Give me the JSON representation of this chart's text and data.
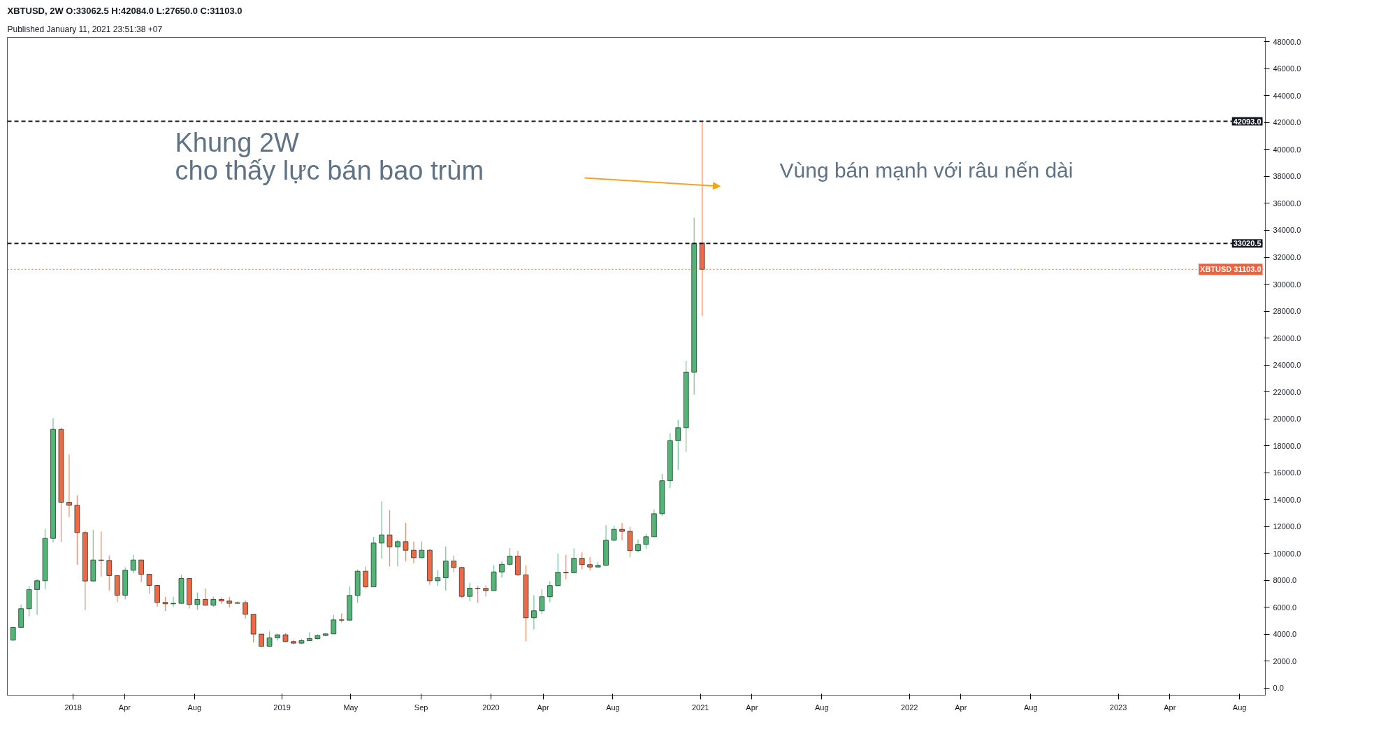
{
  "chart_data": {
    "type": "candlestick",
    "title": "XBTUSD, 2W O:33062.5 H:42084.0 L:27650.0 C:31103.0",
    "subtitle": "Published January 11, 2021 23:51:38 +07",
    "x": [
      "2017-09-18",
      "2017-10-02",
      "2017-10-16",
      "2017-10-30",
      "2017-11-13",
      "2017-11-27",
      "2017-12-11",
      "2017-12-25",
      "2018-01-08",
      "2018-01-22",
      "2018-02-05",
      "2018-02-19",
      "2018-03-05",
      "2018-03-19",
      "2018-04-02",
      "2018-04-16",
      "2018-04-30",
      "2018-05-14",
      "2018-05-28",
      "2018-06-11",
      "2018-06-25",
      "2018-07-09",
      "2018-07-23",
      "2018-08-06",
      "2018-08-20",
      "2018-09-03",
      "2018-09-17",
      "2018-10-01",
      "2018-10-15",
      "2018-10-29",
      "2018-11-12",
      "2018-11-26",
      "2018-12-10",
      "2018-12-24",
      "2019-01-07",
      "2019-01-21",
      "2019-02-04",
      "2019-02-18",
      "2019-03-04",
      "2019-03-18",
      "2019-04-01",
      "2019-04-15",
      "2019-04-29",
      "2019-05-13",
      "2019-05-27",
      "2019-06-10",
      "2019-06-24",
      "2019-07-08",
      "2019-07-22",
      "2019-08-05",
      "2019-08-19",
      "2019-09-02",
      "2019-09-16",
      "2019-09-30",
      "2019-10-14",
      "2019-10-28",
      "2019-11-11",
      "2019-11-25",
      "2019-12-09",
      "2019-12-23",
      "2020-01-06",
      "2020-01-20",
      "2020-02-03",
      "2020-02-17",
      "2020-03-02",
      "2020-03-16",
      "2020-03-30",
      "2020-04-13",
      "2020-04-27",
      "2020-05-11",
      "2020-05-25",
      "2020-06-08",
      "2020-06-22",
      "2020-07-06",
      "2020-07-20",
      "2020-08-03",
      "2020-08-17",
      "2020-08-31",
      "2020-09-14",
      "2020-09-28",
      "2020-10-12",
      "2020-10-26",
      "2020-11-09",
      "2020-11-23",
      "2020-12-07",
      "2020-12-21",
      "2021-01-04"
    ],
    "ohlc": [
      [
        3559,
        4560,
        3525,
        4510
      ],
      [
        4510,
        6188,
        4475,
        5894
      ],
      [
        5894,
        7555,
        5323,
        7313
      ],
      [
        7313,
        8110,
        5427,
        7970
      ],
      [
        7970,
        11828,
        7330,
        11119
      ],
      [
        11119,
        20046,
        10825,
        19215
      ],
      [
        19215,
        19354,
        10859,
        13800
      ],
      [
        13800,
        17364,
        12693,
        13575
      ],
      [
        13575,
        14319,
        9164,
        11551
      ],
      [
        11551,
        11690,
        5808,
        7953
      ],
      [
        7953,
        11741,
        7953,
        9510
      ],
      [
        9510,
        11638,
        8281,
        9475
      ],
      [
        9475,
        9839,
        7244,
        8351
      ],
      [
        8351,
        8351,
        6378,
        6898
      ],
      [
        6898,
        8973,
        6586,
        8749
      ],
      [
        8749,
        9890,
        8541,
        9510
      ],
      [
        9510,
        9510,
        7884,
        8455
      ],
      [
        8455,
        8455,
        7019,
        7624
      ],
      [
        7624,
        7624,
        6033,
        6361
      ],
      [
        6361,
        6776,
        5721,
        6257
      ],
      [
        6257,
        6776,
        6033,
        6292
      ],
      [
        6292,
        8420,
        6257,
        8143
      ],
      [
        8143,
        8143,
        5911,
        6205
      ],
      [
        6205,
        7105,
        5807,
        6586
      ],
      [
        6586,
        7382,
        6119,
        6154
      ],
      [
        6154,
        6776,
        6033,
        6586
      ],
      [
        6586,
        6725,
        6257,
        6465
      ],
      [
        6465,
        6776,
        5980,
        6292
      ],
      [
        6292,
        6431,
        6257,
        6344
      ],
      [
        6344,
        6517,
        5168,
        5479
      ],
      [
        5479,
        5479,
        3386,
        4008
      ],
      [
        4008,
        4008,
        3072,
        3107
      ],
      [
        3107,
        4214,
        3107,
        3730
      ],
      [
        3730,
        4041,
        3522,
        3955
      ],
      [
        3955,
        4076,
        3418,
        3453
      ],
      [
        3453,
        3591,
        3263,
        3332
      ],
      [
        3332,
        3643,
        3263,
        3522
      ],
      [
        3522,
        4145,
        3505,
        3678
      ],
      [
        3678,
        3989,
        3609,
        3903
      ],
      [
        3903,
        4076,
        3851,
        4024
      ],
      [
        4024,
        5426,
        4024,
        5062
      ],
      [
        5062,
        5563,
        4871,
        5045
      ],
      [
        5045,
        7553,
        5045,
        6878
      ],
      [
        6878,
        8799,
        6342,
        8677
      ],
      [
        8677,
        9023,
        7414,
        7518
      ],
      [
        7518,
        11221,
        7484,
        10771
      ],
      [
        10771,
        13867,
        9612,
        11376
      ],
      [
        11376,
        13210,
        9041,
        10494
      ],
      [
        10494,
        11030,
        9041,
        10874
      ],
      [
        10874,
        12276,
        9421,
        10235
      ],
      [
        10235,
        10874,
        9266,
        9681
      ],
      [
        9681,
        10874,
        9681,
        10235
      ],
      [
        10235,
        10338,
        7674,
        7968
      ],
      [
        7968,
        8747,
        7605,
        8193
      ],
      [
        8193,
        10511,
        7241,
        9439
      ],
      [
        9439,
        9836,
        8608,
        8954
      ],
      [
        8954,
        9006,
        6688,
        6809
      ],
      [
        6809,
        7813,
        6446,
        7415
      ],
      [
        7415,
        7588,
        6342,
        7400
      ],
      [
        7400,
        7640,
        6809,
        7241
      ],
      [
        7241,
        9127,
        7241,
        8625
      ],
      [
        8625,
        9420,
        8200,
        9190
      ],
      [
        9190,
        10400,
        9100,
        9800
      ],
      [
        9800,
        10200,
        8330,
        8410
      ],
      [
        8410,
        9130,
        3480,
        5220
      ],
      [
        5220,
        6900,
        4350,
        5740
      ],
      [
        5740,
        7350,
        5500,
        6780
      ],
      [
        6780,
        7940,
        6380,
        7610
      ],
      [
        7610,
        10000,
        7550,
        8600
      ],
      [
        8600,
        9900,
        8080,
        8560
      ],
      [
        8560,
        10360,
        8540,
        9640
      ],
      [
        9640,
        10080,
        8810,
        9170
      ],
      [
        9170,
        9720,
        8730,
        8990
      ],
      [
        8990,
        9380,
        8990,
        9120
      ],
      [
        9120,
        12100,
        9070,
        10980
      ],
      [
        10980,
        12050,
        10900,
        11790
      ],
      [
        11790,
        12270,
        10990,
        11640
      ],
      [
        11640,
        11980,
        9740,
        10210
      ],
      [
        10210,
        11030,
        10080,
        10670
      ],
      [
        10670,
        11450,
        10330,
        11240
      ],
      [
        11240,
        13270,
        11240,
        12950
      ],
      [
        12950,
        15900,
        12800,
        15400
      ],
      [
        15400,
        18930,
        14850,
        18380
      ],
      [
        18380,
        19930,
        16200,
        19340
      ],
      [
        19340,
        24300,
        17550,
        23470
      ],
      [
        23470,
        34940,
        21780,
        33020.5
      ],
      [
        33062.5,
        42084,
        27650,
        31103
      ]
    ],
    "colors": [
      "#52b477",
      "#52b477",
      "#52b477",
      "#52b477",
      "#52b477",
      "#52b477",
      "#ec6a47",
      "#ec6a47",
      "#ec6a47",
      "#ec6a47",
      "#52b477",
      "#ec6a47",
      "#ec6a47",
      "#ec6a47",
      "#52b477",
      "#52b477",
      "#ec6a47",
      "#ec6a47",
      "#ec6a47",
      "#ec6a47",
      "#52b477",
      "#52b477",
      "#ec6a47",
      "#52b477",
      "#ec6a47",
      "#52b477",
      "#ec6a47",
      "#ec6a47",
      "#52b477",
      "#ec6a47",
      "#ec6a47",
      "#ec6a47",
      "#52b477",
      "#52b477",
      "#ec6a47",
      "#ec6a47",
      "#52b477",
      "#52b477",
      "#52b477",
      "#52b477",
      "#52b477",
      "#ec6a47",
      "#52b477",
      "#52b477",
      "#ec6a47",
      "#52b477",
      "#52b477",
      "#ec6a47",
      "#52b477",
      "#ec6a47",
      "#ec6a47",
      "#52b477",
      "#ec6a47",
      "#52b477",
      "#52b477",
      "#ec6a47",
      "#ec6a47",
      "#52b477",
      "#ec6a47",
      "#ec6a47",
      "#52b477",
      "#52b477",
      "#52b477",
      "#ec6a47",
      "#ec6a47",
      "#52b477",
      "#52b477",
      "#52b477",
      "#52b477",
      "#ec6a47",
      "#52b477",
      "#ec6a47",
      "#ec6a47",
      "#52b477",
      "#52b477",
      "#52b477",
      "#ec6a47",
      "#ec6a47",
      "#52b477",
      "#52b477",
      "#52b477",
      "#52b477",
      "#52b477",
      "#52b477",
      "#52b477",
      "#52b477",
      "#ec6a47"
    ],
    "xlim": [
      "2017-09-08",
      "2023-09-15"
    ],
    "xticks": [
      {
        "value": "2018-01-01",
        "label": "2018"
      },
      {
        "value": "2018-04-01",
        "label": "Apr"
      },
      {
        "value": "2018-08-01",
        "label": "Aug"
      },
      {
        "value": "2019-01-01",
        "label": "2019"
      },
      {
        "value": "2019-05-01",
        "label": "May"
      },
      {
        "value": "2019-09-01",
        "label": "Sep"
      },
      {
        "value": "2020-01-01",
        "label": "2020"
      },
      {
        "value": "2020-04-01",
        "label": "Apr"
      },
      {
        "value": "2020-08-01",
        "label": "Aug"
      },
      {
        "value": "2021-01-01",
        "label": "2021"
      },
      {
        "value": "2021-04-01",
        "label": "Apr"
      },
      {
        "value": "2021-08-01",
        "label": "Aug"
      },
      {
        "value": "2022-01-01",
        "label": "2022"
      },
      {
        "value": "2022-04-01",
        "label": "Apr"
      },
      {
        "value": "2022-08-01",
        "label": "Aug"
      },
      {
        "value": "2023-01-01",
        "label": "2023"
      },
      {
        "value": "2023-04-01",
        "label": "Apr"
      },
      {
        "value": "2023-08-01",
        "label": "Aug"
      }
    ],
    "ylim": [
      -530,
      48330
    ],
    "yticks": [
      {
        "value": 0,
        "label": "0.0"
      },
      {
        "value": 2000,
        "label": "2000.0"
      },
      {
        "value": 4000,
        "label": "4000.0"
      },
      {
        "value": 6000,
        "label": "6000.0"
      },
      {
        "value": 8000,
        "label": "8000.0"
      },
      {
        "value": 10000,
        "label": "10000.0"
      },
      {
        "value": 12000,
        "label": "12000.0"
      },
      {
        "value": 14000,
        "label": "14000.0"
      },
      {
        "value": 16000,
        "label": "16000.0"
      },
      {
        "value": 18000,
        "label": "18000.0"
      },
      {
        "value": 20000,
        "label": "20000.0"
      },
      {
        "value": 22000,
        "label": "22000.0"
      },
      {
        "value": 24000,
        "label": "24000.0"
      },
      {
        "value": 26000,
        "label": "26000.0"
      },
      {
        "value": 28000,
        "label": "28000.0"
      },
      {
        "value": 30000,
        "label": "30000.0"
      },
      {
        "value": 32000,
        "label": "32000.0"
      },
      {
        "value": 34000,
        "label": "34000.0"
      },
      {
        "value": 36000,
        "label": "36000.0"
      },
      {
        "value": 38000,
        "label": "38000.0"
      },
      {
        "value": 40000,
        "label": "40000.0"
      },
      {
        "value": 42000,
        "label": "42000.0"
      },
      {
        "value": 44000,
        "label": "44000.0"
      },
      {
        "value": 46000,
        "label": "46000.0"
      },
      {
        "value": 48000,
        "label": "48000.0"
      }
    ],
    "ref_lines": [
      {
        "axis": "y",
        "value": 42093,
        "label": "42093.0",
        "color": "#131722",
        "line_style": "dashed"
      },
      {
        "axis": "y",
        "value": 33020.5,
        "label": "33020.5",
        "color": "#131722",
        "line_style": "dashed"
      },
      {
        "axis": "y",
        "value": 31103,
        "label": "XBTUSD 31103.0",
        "color": "#f0603c",
        "line_style": "dotted"
      }
    ],
    "annotations": [
      "Khung 2W\ncho thấy lực bán bao trùm",
      "Vùng bán mạnh với râu nến dài"
    ],
    "grid": false
  }
}
